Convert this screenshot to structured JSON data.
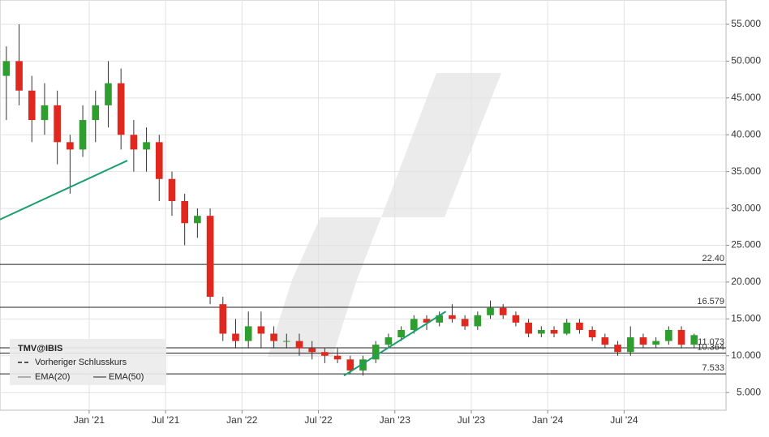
{
  "chart_data": {
    "type": "candlestick",
    "legend_title": "TMV@IBIS",
    "legend": [
      "Vorheriger Schlusskurs",
      "EMA(20)",
      "EMA(50)"
    ],
    "x": [
      "2020-06",
      "2020-07",
      "2020-08",
      "2020-09",
      "2020-10",
      "2020-11",
      "2020-12",
      "2021-01",
      "2021-02",
      "2021-03",
      "2021-04",
      "2021-05",
      "2021-06",
      "2021-07",
      "2021-08",
      "2021-09",
      "2021-10",
      "2021-11",
      "2021-12",
      "2022-01",
      "2022-02",
      "2022-03",
      "2022-04",
      "2022-05",
      "2022-06",
      "2022-07",
      "2022-08",
      "2022-09",
      "2022-10",
      "2022-11",
      "2022-12",
      "2023-01",
      "2023-02",
      "2023-03",
      "2023-04",
      "2023-05",
      "2023-06",
      "2023-07",
      "2023-08",
      "2023-09",
      "2023-10",
      "2023-11",
      "2023-12",
      "2024-01",
      "2024-02",
      "2024-03",
      "2024-04",
      "2024-05",
      "2024-06",
      "2024-07",
      "2024-08",
      "2024-09",
      "2024-10",
      "2024-11",
      "2024-12"
    ],
    "open": [
      48,
      50,
      46,
      42,
      44,
      39,
      38,
      42,
      44,
      47,
      40,
      38,
      39,
      34,
      31,
      28,
      29,
      17,
      13,
      12,
      14,
      13,
      12,
      12,
      11,
      10.5,
      10,
      9.5,
      8,
      9.5,
      11.5,
      12.5,
      13.5,
      15,
      14.5,
      15.5,
      15,
      14,
      15.5,
      16.5,
      15.5,
      14.5,
      13,
      13.5,
      13,
      14.5,
      13.5,
      12.5,
      11.5,
      10.5,
      12.5,
      11.5,
      12,
      13.5,
      11.5
    ],
    "high": [
      52,
      55,
      48,
      47,
      46,
      40,
      44,
      46,
      50,
      49,
      42,
      41,
      40,
      35,
      32,
      30,
      30,
      18,
      15,
      16,
      16,
      14,
      13,
      13,
      12,
      11,
      11,
      10,
      10,
      12,
      13,
      14,
      15.5,
      15.5,
      16,
      17,
      15.5,
      16,
      17.5,
      17,
      16,
      15,
      14,
      14,
      15,
      15,
      14,
      13,
      12,
      14,
      13,
      12.5,
      14,
      14,
      13
    ],
    "low": [
      42,
      44,
      39,
      40,
      36,
      32,
      37,
      39,
      41,
      38,
      35,
      35,
      31,
      29,
      25,
      26,
      17,
      12,
      11,
      11,
      11,
      11,
      11,
      10,
      9.5,
      9,
      9,
      7.5,
      7.3,
      9,
      11,
      12,
      13,
      13.5,
      14,
      14.5,
      13.5,
      13.5,
      15,
      15,
      14,
      12.5,
      12.5,
      12.5,
      12.8,
      13,
      12,
      11,
      10,
      10,
      11,
      11,
      11.5,
      11,
      11
    ],
    "close": [
      50,
      46,
      42,
      44,
      39,
      38,
      42,
      44,
      47,
      40,
      38,
      39,
      34,
      31,
      28,
      29,
      18,
      13,
      12,
      14,
      13,
      12,
      12,
      11,
      10.5,
      10,
      9.5,
      8,
      9.5,
      11.5,
      12.5,
      13.5,
      15,
      14.5,
      15.5,
      15,
      14,
      15.5,
      16.5,
      15.5,
      14.5,
      13,
      13.5,
      13,
      14.5,
      13.5,
      12.5,
      11.5,
      10.5,
      12.5,
      11.5,
      12,
      13.5,
      11.5,
      12.8
    ],
    "up_color": "#2e9e2e",
    "down_color": "#e0281f",
    "xlim": [
      "2020-06",
      "2025-03"
    ],
    "xticks": [
      {
        "value": "2021-01",
        "label": "Jan '21"
      },
      {
        "value": "2021-07",
        "label": "Jul '21"
      },
      {
        "value": "2022-01",
        "label": "Jan '22"
      },
      {
        "value": "2022-07",
        "label": "Jul '22"
      },
      {
        "value": "2023-01",
        "label": "Jan '23"
      },
      {
        "value": "2023-07",
        "label": "Jul '23"
      },
      {
        "value": "2024-01",
        "label": "Jan '24"
      },
      {
        "value": "2024-07",
        "label": "Jul '24"
      }
    ],
    "ylim": [
      2.6,
      58.3
    ],
    "yticks": [
      {
        "value": 5,
        "label": "5.000"
      },
      {
        "value": 10,
        "label": "10.000"
      },
      {
        "value": 15,
        "label": "15.000"
      },
      {
        "value": 20,
        "label": "20.000"
      },
      {
        "value": 25,
        "label": "25.000"
      },
      {
        "value": 30,
        "label": "30.000"
      },
      {
        "value": 35,
        "label": "35.000"
      },
      {
        "value": 40,
        "label": "40.000"
      },
      {
        "value": 45,
        "label": "45.000"
      },
      {
        "value": 50,
        "label": "50.000"
      },
      {
        "value": 55,
        "label": "55.000"
      }
    ],
    "levels": [
      {
        "value": 22.4,
        "label": "22.40"
      },
      {
        "value": 16.579,
        "label": "16.579"
      },
      {
        "value": 11.073,
        "label": "11.073"
      },
      {
        "value": 10.364,
        "label": "10.364"
      },
      {
        "value": 7.533,
        "label": "7.533"
      }
    ],
    "trendlines": [
      {
        "x": [
          "2020-06",
          "2021-04"
        ],
        "y": [
          28.5,
          36.5
        ]
      },
      {
        "x": [
          "2022-09",
          "2023-05"
        ],
        "y": [
          7.3,
          16
        ]
      }
    ],
    "trend_color": "#1a9e6e",
    "grid": true
  }
}
